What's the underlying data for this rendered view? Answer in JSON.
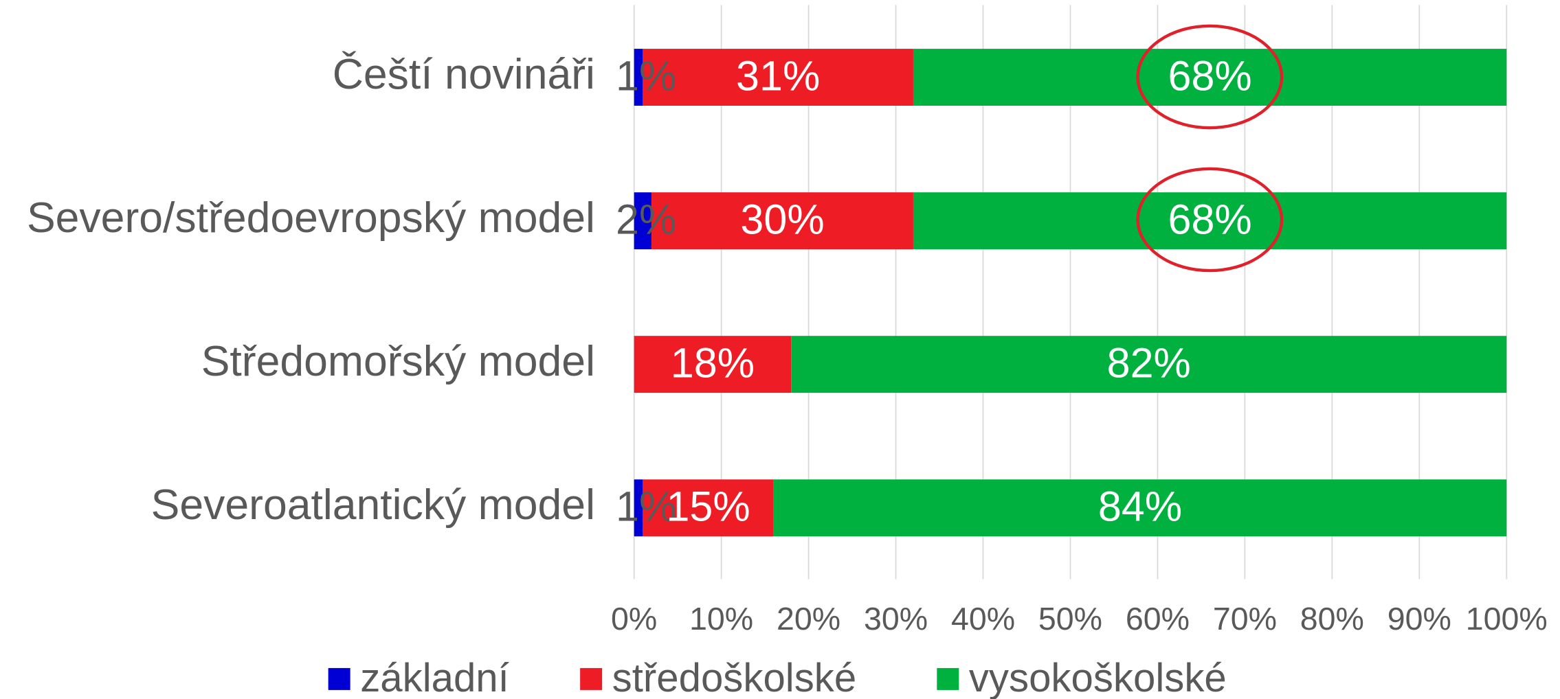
{
  "chart_data": {
    "type": "stacked_barh",
    "categories": [
      "Čeští novináři",
      "Severo/středoevropský model",
      "Středomořský model",
      "Severoatlantický model"
    ],
    "series": [
      {
        "name": "základní",
        "color": "#0000d4",
        "values": [
          1,
          2,
          0,
          1
        ],
        "value_labels": [
          "1%",
          "2%",
          null,
          "1%"
        ]
      },
      {
        "name": "středoškolské",
        "color": "#ee1c25",
        "values": [
          31,
          30,
          18,
          15
        ],
        "value_labels": [
          "31%",
          "30%",
          "18%",
          "15%"
        ]
      },
      {
        "name": "vysokoškolské",
        "color": "#00b140",
        "values": [
          68,
          68,
          82,
          84
        ],
        "value_labels": [
          "68%",
          "68%",
          "82%",
          "84%"
        ]
      }
    ],
    "xlim": [
      0,
      100
    ],
    "xticks": [
      {
        "value": 0,
        "label": "0%"
      },
      {
        "value": 10,
        "label": "10%"
      },
      {
        "value": 20,
        "label": "20%"
      },
      {
        "value": 30,
        "label": "30%"
      },
      {
        "value": 40,
        "label": "40%"
      },
      {
        "value": 50,
        "label": "50%"
      },
      {
        "value": 60,
        "label": "60%"
      },
      {
        "value": 70,
        "label": "70%"
      },
      {
        "value": 80,
        "label": "80%"
      },
      {
        "value": 90,
        "label": "90%"
      },
      {
        "value": 100,
        "label": "100%"
      }
    ],
    "grid": true,
    "legend": "bottom"
  }
}
